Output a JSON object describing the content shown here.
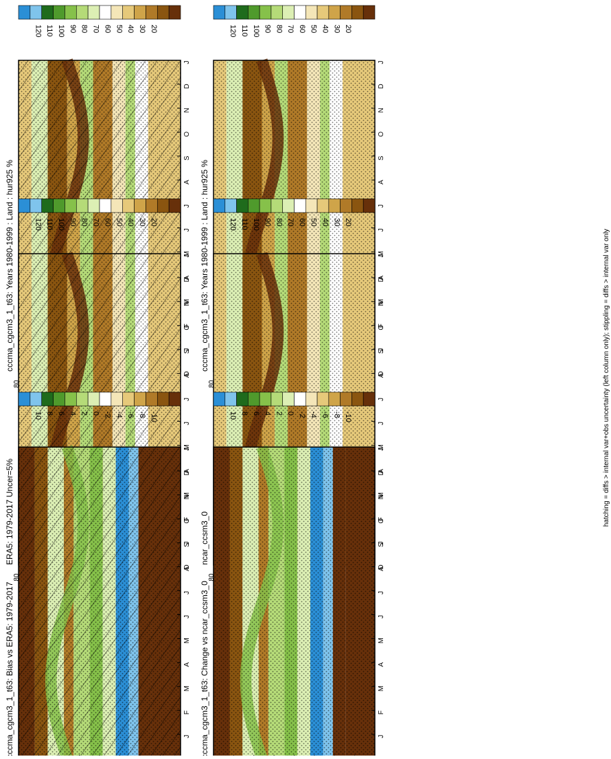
{
  "footnote": "hatching = diffs > internal var+obs uncertainty (left column only); stippling = diffs > internal var only",
  "colors": {
    "scale_abs": [
      "#67300a",
      "#8a5510",
      "#b07a28",
      "#cfa449",
      "#e6c97a",
      "#f4e6b8",
      "#ffffff",
      "#dcefb4",
      "#b5db78",
      "#86c14a",
      "#4f9a2c",
      "#1f6b1c",
      "#7fc4ec",
      "#2b8fd6"
    ],
    "scale_diff": [
      "#67300a",
      "#8a5510",
      "#b07a28",
      "#cfa449",
      "#e6c97a",
      "#f4e6b8",
      "#ffffff",
      "#dcefb4",
      "#b5db78",
      "#86c14a",
      "#4f9a2c",
      "#1f6b1c",
      "#7fc4ec",
      "#2b8fd6"
    ]
  },
  "panels": [
    {
      "id": "p1",
      "title": "cccma_cgcm3_1_t63: Years 1980-1999 : Land : hur925 %",
      "palette": "abs",
      "hatch": true,
      "stipple": true
    },
    {
      "id": "p2",
      "title": "cccma_cgcm3_1_t63: Years 1980-1999 : Land : hur925 %",
      "palette": "abs",
      "hatch": false,
      "stipple": true
    },
    {
      "id": "p3",
      "title": "ERA5: 1979-2017 Uncer=5%",
      "palette": "abs",
      "hatch": true,
      "stipple": true
    },
    {
      "id": "p4",
      "title": "ncar_ccsm3_0",
      "palette": "abs",
      "hatch": false,
      "stipple": true
    },
    {
      "id": "p5",
      "title": "cccma_cgcm3_1_t63: Bias vs ERA5: 1979-2017",
      "palette": "diff",
      "hatch": true,
      "stipple": true
    },
    {
      "id": "p6",
      "title": "cccma_cgcm3_1_t63: Change vs ncar_ccsm3_0",
      "palette": "diff",
      "hatch": false,
      "stipple": true
    }
  ],
  "colorbars": [
    {
      "id": "cb1",
      "labels": [
        "120",
        "110",
        "100",
        "90",
        "80",
        "70",
        "60",
        "50",
        "40",
        "30",
        "20"
      ]
    },
    {
      "id": "cb2",
      "labels": [
        "120",
        "110",
        "100",
        "90",
        "80",
        "70",
        "60",
        "50",
        "40",
        "30",
        "20"
      ]
    },
    {
      "id": "cb3",
      "labels": [
        "120",
        "110",
        "100",
        "90",
        "80",
        "70",
        "60",
        "50",
        "40",
        "30",
        "20"
      ]
    },
    {
      "id": "cb4",
      "labels": [
        "120",
        "110",
        "100",
        "90",
        "80",
        "70",
        "60",
        "50",
        "40",
        "30",
        "20"
      ]
    },
    {
      "id": "cb5",
      "labels": [
        "10",
        "8",
        "6",
        "4",
        "2",
        "0",
        "-2",
        "-4",
        "-6",
        "-8",
        "-10"
      ]
    },
    {
      "id": "cb6",
      "labels": [
        "10",
        "8",
        "6",
        "4",
        "2",
        "0",
        "-2",
        "-4",
        "-6",
        "-8",
        "-10"
      ]
    }
  ],
  "chart_data": {
    "type": "heatmap",
    "x_axis_months": [
      "D",
      "J",
      "F",
      "M",
      "A",
      "M",
      "J",
      "J",
      "A",
      "S",
      "O",
      "N",
      "D",
      "J"
    ],
    "y_axis_labels": [
      "80",
      "60",
      "°N",
      "20",
      "0",
      "20",
      "°S",
      "60",
      "80"
    ],
    "lat_range": [
      -90,
      90
    ],
    "variable": "hur925 %"
  }
}
